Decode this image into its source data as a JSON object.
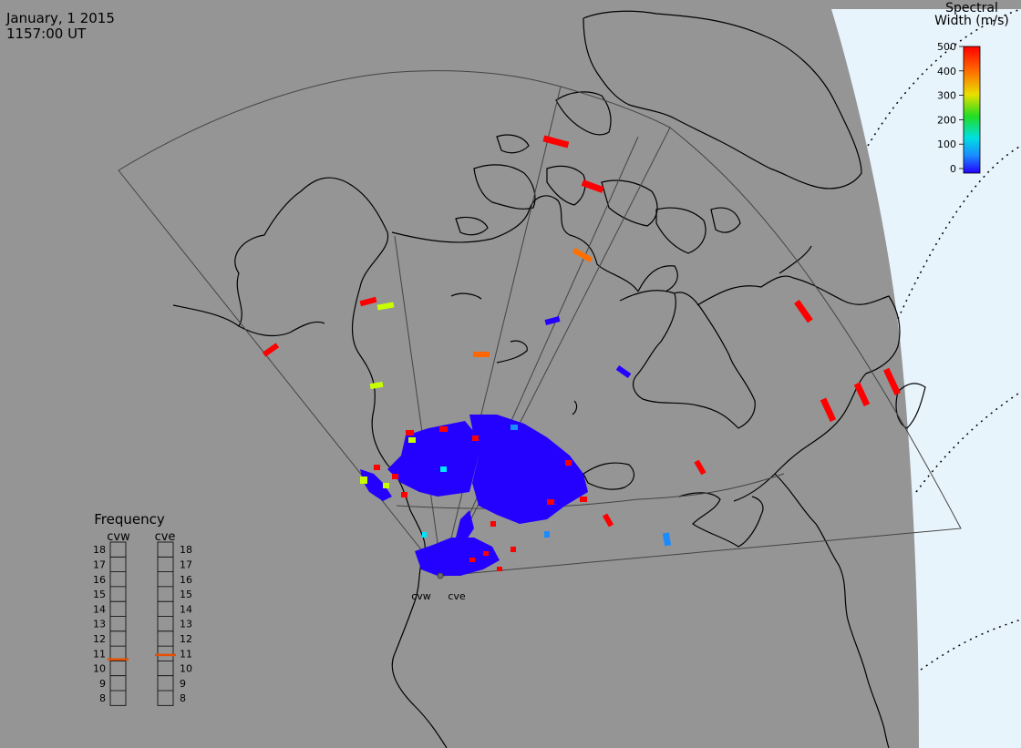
{
  "header": {
    "date": "January, 1 2015",
    "time": "1157:00 UT"
  },
  "colorbar": {
    "title_line1": "Spectral",
    "title_line2": "Width (m/s)",
    "ticks": [
      "500",
      "400",
      "300",
      "200",
      "100",
      "0"
    ],
    "range": [
      0,
      500
    ]
  },
  "radars": {
    "west": "cvw",
    "east": "cve"
  },
  "frequency": {
    "title": "Frequency",
    "col_west": "cvw",
    "col_east": "cve",
    "levels": [
      "18",
      "17",
      "16",
      "15",
      "14",
      "13",
      "12",
      "11",
      "10",
      "9",
      "8"
    ],
    "cvw_value": 10.6,
    "cve_value": 10.9
  },
  "colors": {
    "background": "#959595",
    "daylight": "#e8f4fc",
    "low": "#2400ff",
    "high": "#ff0000"
  }
}
